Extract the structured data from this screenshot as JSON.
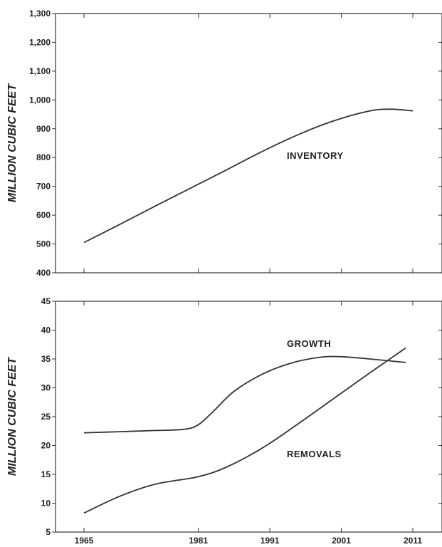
{
  "chart_data": [
    {
      "type": "line",
      "ylabel": "MILLION CUBIC FEET",
      "ylim": [
        400,
        1300
      ],
      "yticks": [
        400,
        500,
        600,
        700,
        800,
        900,
        1000,
        1100,
        1200,
        1300
      ],
      "ytick_labels": [
        "400",
        "500",
        "600",
        "700",
        "800",
        "900",
        "1,000",
        "1,100",
        "1,200",
        "1,300"
      ],
      "xlim": [
        1965,
        2011
      ],
      "xticks": [
        1965,
        1981,
        1991,
        2001,
        2011
      ],
      "grid": false,
      "series": [
        {
          "name": "INVENTORY",
          "x": [
            1965,
            1970,
            1975,
            1980,
            1985,
            1990,
            1995,
            2000,
            2005,
            2008,
            2011
          ],
          "y": [
            505,
            568,
            632,
            695,
            758,
            822,
            880,
            928,
            962,
            968,
            962
          ]
        }
      ]
    },
    {
      "type": "line",
      "ylabel": "MILLION CUBIC FEET",
      "ylim": [
        5,
        45
      ],
      "yticks": [
        5,
        10,
        15,
        20,
        25,
        30,
        35,
        40,
        45
      ],
      "ytick_labels": [
        "5",
        "10",
        "15",
        "20",
        "25",
        "30",
        "35",
        "40",
        "45"
      ],
      "xlim": [
        1965,
        2011
      ],
      "xticks": [
        1965,
        1981,
        1991,
        2001,
        2011
      ],
      "xtick_labels": [
        "1965",
        "1981",
        "1991",
        "2001",
        "2011"
      ],
      "grid": false,
      "series": [
        {
          "name": "GROWTH",
          "x": [
            1965,
            1970,
            1975,
            1979,
            1981,
            1983,
            1986,
            1990,
            1994,
            1998,
            2001,
            2005,
            2010
          ],
          "y": [
            22.2,
            22.4,
            22.6,
            22.8,
            23.6,
            25.8,
            29.4,
            32.4,
            34.3,
            35.3,
            35.4,
            35.0,
            34.4
          ]
        },
        {
          "name": "REMOVALS",
          "x": [
            1965,
            1970,
            1975,
            1981,
            1985,
            1990,
            1995,
            2000,
            2005,
            2010
          ],
          "y": [
            8.3,
            11.2,
            13.3,
            14.6,
            16.3,
            19.6,
            23.8,
            28.2,
            32.6,
            36.9
          ]
        }
      ]
    }
  ]
}
